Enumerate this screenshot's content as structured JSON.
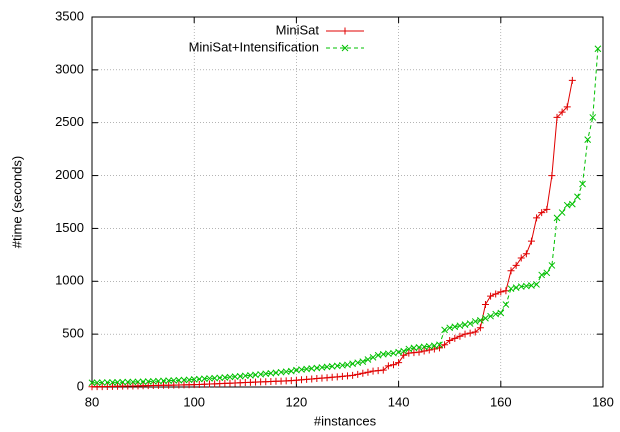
{
  "chart_data": {
    "type": "line",
    "xlabel": "#instances",
    "ylabel": "#time (seconds)",
    "xlim": [
      80,
      180
    ],
    "xticks": [
      80,
      100,
      120,
      140,
      160,
      180
    ],
    "ylim": [
      0,
      3500
    ],
    "yticks": [
      0,
      500,
      1000,
      1500,
      2000,
      2500,
      3000,
      3500
    ],
    "grid": true,
    "legend": "top-left",
    "series": [
      {
        "name": "MiniSat",
        "color": "#e00000",
        "marker": "plus",
        "x": [
          80,
          81,
          82,
          83,
          84,
          85,
          86,
          87,
          88,
          89,
          90,
          91,
          92,
          93,
          94,
          95,
          96,
          97,
          98,
          99,
          100,
          101,
          102,
          103,
          104,
          105,
          106,
          107,
          108,
          109,
          110,
          111,
          112,
          113,
          114,
          115,
          116,
          117,
          118,
          119,
          120,
          121,
          122,
          123,
          124,
          125,
          126,
          127,
          128,
          129,
          130,
          131,
          132,
          133,
          134,
          135,
          136,
          137,
          138,
          139,
          140,
          141,
          142,
          143,
          144,
          145,
          146,
          147,
          148,
          149,
          150,
          151,
          152,
          153,
          154,
          155,
          156,
          157,
          158,
          159,
          160,
          161,
          162,
          163,
          164,
          165,
          166,
          167,
          168,
          169,
          170,
          171,
          172,
          173,
          174
        ],
        "values": [
          2,
          3,
          4,
          5,
          6,
          7,
          8,
          9,
          10,
          11,
          12,
          13,
          14,
          15,
          16,
          17,
          18,
          19,
          20,
          21,
          22,
          24,
          26,
          28,
          30,
          32,
          34,
          36,
          38,
          40,
          42,
          44,
          46,
          48,
          50,
          52,
          54,
          56,
          58,
          60,
          64,
          68,
          72,
          76,
          80,
          84,
          88,
          92,
          96,
          100,
          105,
          110,
          120,
          130,
          140,
          150,
          155,
          160,
          200,
          210,
          230,
          300,
          320,
          325,
          330,
          340,
          350,
          360,
          370,
          400,
          440,
          460,
          480,
          500,
          510,
          520,
          560,
          780,
          860,
          880,
          900,
          910,
          1100,
          1150,
          1220,
          1260,
          1380,
          1600,
          1650,
          1680,
          2000,
          2550,
          2600,
          2650,
          2900
        ]
      },
      {
        "name": "MiniSat+Intensification",
        "color": "#00c000",
        "marker": "cross",
        "dashed": true,
        "x": [
          80,
          81,
          82,
          83,
          84,
          85,
          86,
          87,
          88,
          89,
          90,
          91,
          92,
          93,
          94,
          95,
          96,
          97,
          98,
          99,
          100,
          101,
          102,
          103,
          104,
          105,
          106,
          107,
          108,
          109,
          110,
          111,
          112,
          113,
          114,
          115,
          116,
          117,
          118,
          119,
          120,
          121,
          122,
          123,
          124,
          125,
          126,
          127,
          128,
          129,
          130,
          131,
          132,
          133,
          134,
          135,
          136,
          137,
          138,
          139,
          140,
          141,
          142,
          143,
          144,
          145,
          146,
          147,
          148,
          149,
          150,
          151,
          152,
          153,
          154,
          155,
          156,
          157,
          158,
          159,
          160,
          161,
          162,
          163,
          164,
          165,
          166,
          167,
          168,
          169,
          170,
          171,
          172,
          173,
          174,
          175,
          176,
          177,
          178,
          179
        ],
        "values": [
          40,
          41,
          42,
          43,
          44,
          45,
          46,
          47,
          48,
          49,
          50,
          52,
          54,
          56,
          58,
          60,
          62,
          64,
          66,
          68,
          72,
          75,
          78,
          81,
          84,
          87,
          90,
          94,
          98,
          102,
          106,
          110,
          115,
          120,
          125,
          130,
          135,
          140,
          145,
          150,
          160,
          165,
          170,
          175,
          180,
          185,
          190,
          195,
          200,
          205,
          210,
          220,
          230,
          240,
          260,
          280,
          300,
          310,
          315,
          320,
          330,
          340,
          360,
          370,
          375,
          380,
          385,
          390,
          400,
          540,
          560,
          570,
          580,
          590,
          600,
          620,
          630,
          650,
          670,
          690,
          700,
          780,
          930,
          940,
          950,
          955,
          960,
          970,
          1060,
          1080,
          1150,
          1600,
          1650,
          1720,
          1730,
          1800,
          1920,
          2340,
          2550,
          3200
        ]
      }
    ]
  }
}
